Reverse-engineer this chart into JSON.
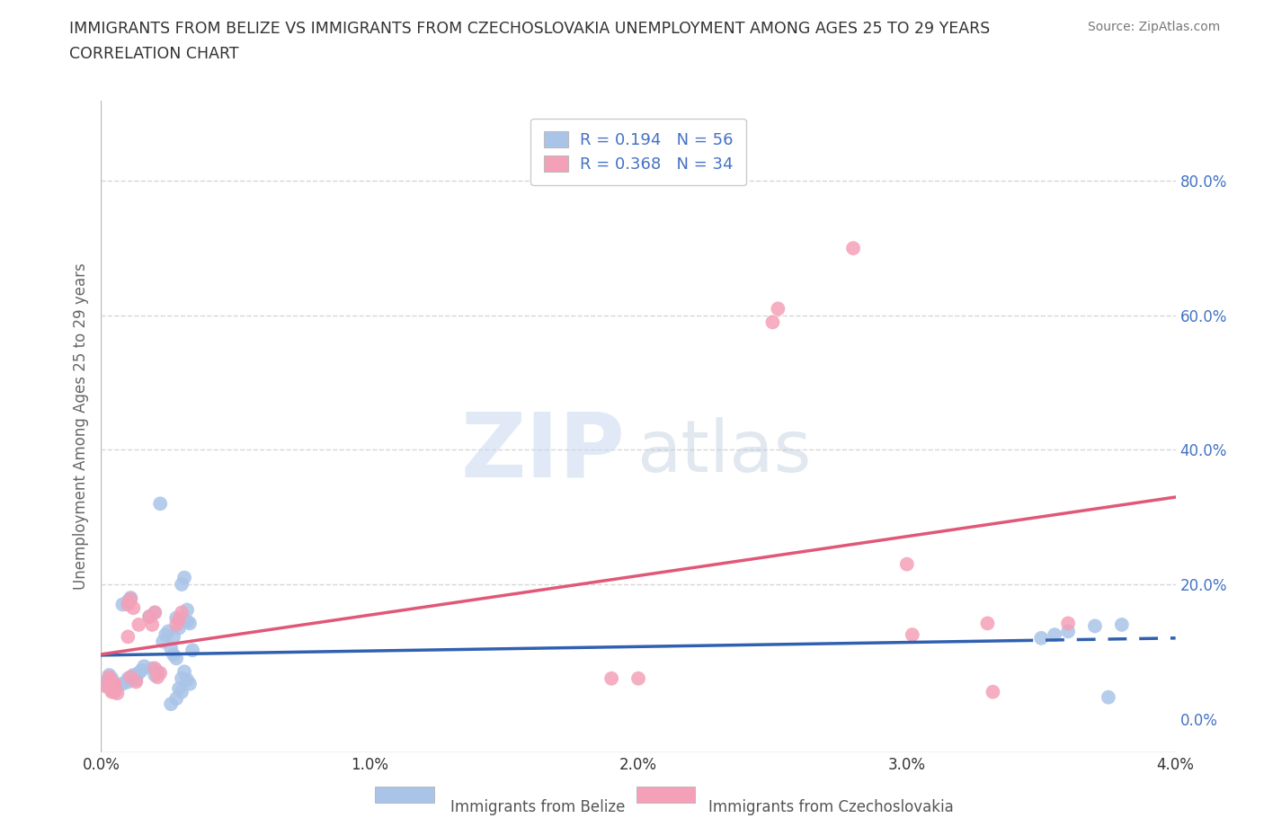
{
  "title_line1": "IMMIGRANTS FROM BELIZE VS IMMIGRANTS FROM CZECHOSLOVAKIA UNEMPLOYMENT AMONG AGES 25 TO 29 YEARS",
  "title_line2": "CORRELATION CHART",
  "source_text": "Source: ZipAtlas.com",
  "ylabel": "Unemployment Among Ages 25 to 29 years",
  "xlim": [
    0.0,
    0.04
  ],
  "ylim": [
    -0.05,
    0.92
  ],
  "xticks": [
    0.0,
    0.01,
    0.02,
    0.03,
    0.04
  ],
  "xtick_labels": [
    "0.0%",
    "1.0%",
    "2.0%",
    "3.0%",
    "4.0%"
  ],
  "yticks_right": [
    0.0,
    0.2,
    0.4,
    0.6,
    0.8
  ],
  "ytick_right_labels": [
    "0.0%",
    "20.0%",
    "40.0%",
    "60.0%",
    "80.0%"
  ],
  "grid_color": "#cccccc",
  "background_color": "#ffffff",
  "belize_color": "#aac4e8",
  "czech_color": "#f4a0b8",
  "belize_line_color": "#3060b0",
  "czech_line_color": "#e05878",
  "belize_R": 0.194,
  "belize_N": 56,
  "czech_R": 0.368,
  "czech_N": 34,
  "legend_label_belize": "Immigrants from Belize",
  "legend_label_czech": "Immigrants from Czechoslovakia",
  "belize_x": [
    0.0002,
    0.0003,
    0.0004,
    0.0002,
    0.0003,
    0.0005,
    0.0006,
    0.0004,
    0.0006,
    0.0008,
    0.001,
    0.001,
    0.0012,
    0.0008,
    0.001,
    0.0011,
    0.0013,
    0.0012,
    0.0014,
    0.0015,
    0.0016,
    0.0018,
    0.002,
    0.0022,
    0.002,
    0.0021,
    0.0019,
    0.0023,
    0.0024,
    0.0025,
    0.0026,
    0.0027,
    0.0028,
    0.0029,
    0.003,
    0.0031,
    0.0032,
    0.0028,
    0.0029,
    0.0027,
    0.003,
    0.0031,
    0.0032,
    0.0033,
    0.0032,
    0.0033,
    0.0034,
    0.003,
    0.0028,
    0.0026,
    0.035,
    0.0355,
    0.036,
    0.037,
    0.0375,
    0.038
  ],
  "belize_y": [
    0.05,
    0.06,
    0.045,
    0.055,
    0.065,
    0.04,
    0.05,
    0.06,
    0.048,
    0.052,
    0.055,
    0.06,
    0.065,
    0.17,
    0.175,
    0.18,
    0.058,
    0.062,
    0.068,
    0.072,
    0.078,
    0.152,
    0.158,
    0.32,
    0.065,
    0.07,
    0.075,
    0.115,
    0.125,
    0.13,
    0.105,
    0.095,
    0.09,
    0.045,
    0.06,
    0.07,
    0.145,
    0.15,
    0.135,
    0.122,
    0.2,
    0.21,
    0.162,
    0.052,
    0.058,
    0.142,
    0.102,
    0.04,
    0.03,
    0.022,
    0.12,
    0.125,
    0.13,
    0.138,
    0.032,
    0.14
  ],
  "czech_x": [
    0.0002,
    0.0003,
    0.0004,
    0.0005,
    0.0003,
    0.0004,
    0.0005,
    0.0006,
    0.001,
    0.0011,
    0.0012,
    0.0013,
    0.001,
    0.0011,
    0.0014,
    0.0018,
    0.002,
    0.0019,
    0.0021,
    0.0022,
    0.002,
    0.0028,
    0.0029,
    0.003,
    0.019,
    0.02,
    0.025,
    0.0252,
    0.028,
    0.03,
    0.0302,
    0.033,
    0.0332,
    0.036
  ],
  "czech_y": [
    0.048,
    0.058,
    0.042,
    0.052,
    0.062,
    0.04,
    0.05,
    0.038,
    0.17,
    0.178,
    0.165,
    0.055,
    0.122,
    0.062,
    0.14,
    0.152,
    0.158,
    0.14,
    0.062,
    0.068,
    0.075,
    0.14,
    0.148,
    0.158,
    0.06,
    0.06,
    0.59,
    0.61,
    0.7,
    0.23,
    0.125,
    0.142,
    0.04,
    0.142
  ]
}
